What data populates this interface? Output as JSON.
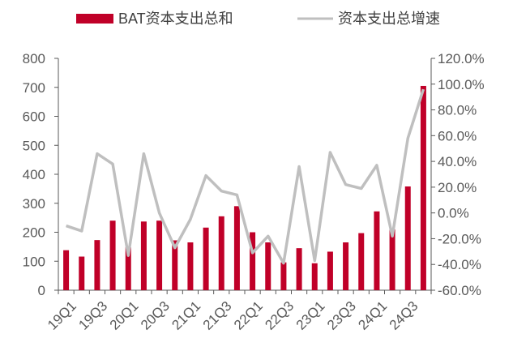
{
  "chart_data": {
    "type": "bar",
    "categories": [
      "19Q1",
      "19Q2",
      "19Q3",
      "19Q4",
      "20Q1",
      "20Q2",
      "20Q3",
      "20Q4",
      "21Q1",
      "21Q2",
      "21Q3",
      "21Q4",
      "22Q1",
      "22Q2",
      "22Q3",
      "22Q4",
      "23Q1",
      "23Q2",
      "23Q3",
      "23Q4",
      "24Q1",
      "24Q2",
      "24Q3",
      "24Q4"
    ],
    "x_tick_labels": [
      "19Q1",
      "19Q3",
      "20Q1",
      "20Q3",
      "21Q1",
      "21Q3",
      "22Q1",
      "22Q3",
      "23Q1",
      "23Q3",
      "24Q1",
      "24Q3"
    ],
    "series": [
      {
        "name": "BAT资本支出总和",
        "type": "bar",
        "axis": "left",
        "color": "#C00028",
        "values": [
          138,
          116,
          173,
          240,
          148,
          237,
          240,
          172,
          165,
          216,
          255,
          290,
          200,
          165,
          96,
          145,
          93,
          133,
          165,
          197,
          272,
          210,
          358,
          705
        ]
      },
      {
        "name": "资本支出总增速",
        "type": "line",
        "axis": "right",
        "color": "#BFBFBF",
        "values": [
          -10,
          -14,
          46,
          38,
          -33,
          46,
          0,
          -27,
          -5,
          29,
          17,
          14,
          -31,
          -18,
          -39,
          36,
          -37,
          47,
          22,
          19,
          37,
          -18,
          58,
          96
        ]
      }
    ],
    "y_left": {
      "min": 0,
      "max": 800,
      "ticks": [
        "0",
        "100",
        "200",
        "300",
        "400",
        "500",
        "600",
        "700",
        "800"
      ]
    },
    "y_right": {
      "min": -60,
      "max": 120,
      "ticks": [
        "-60.0%",
        "-40.0%",
        "-20.0%",
        "0.0%",
        "20.0%",
        "40.0%",
        "60.0%",
        "80.0%",
        "100.0%",
        "120.0%"
      ]
    },
    "legend_position": "top"
  }
}
